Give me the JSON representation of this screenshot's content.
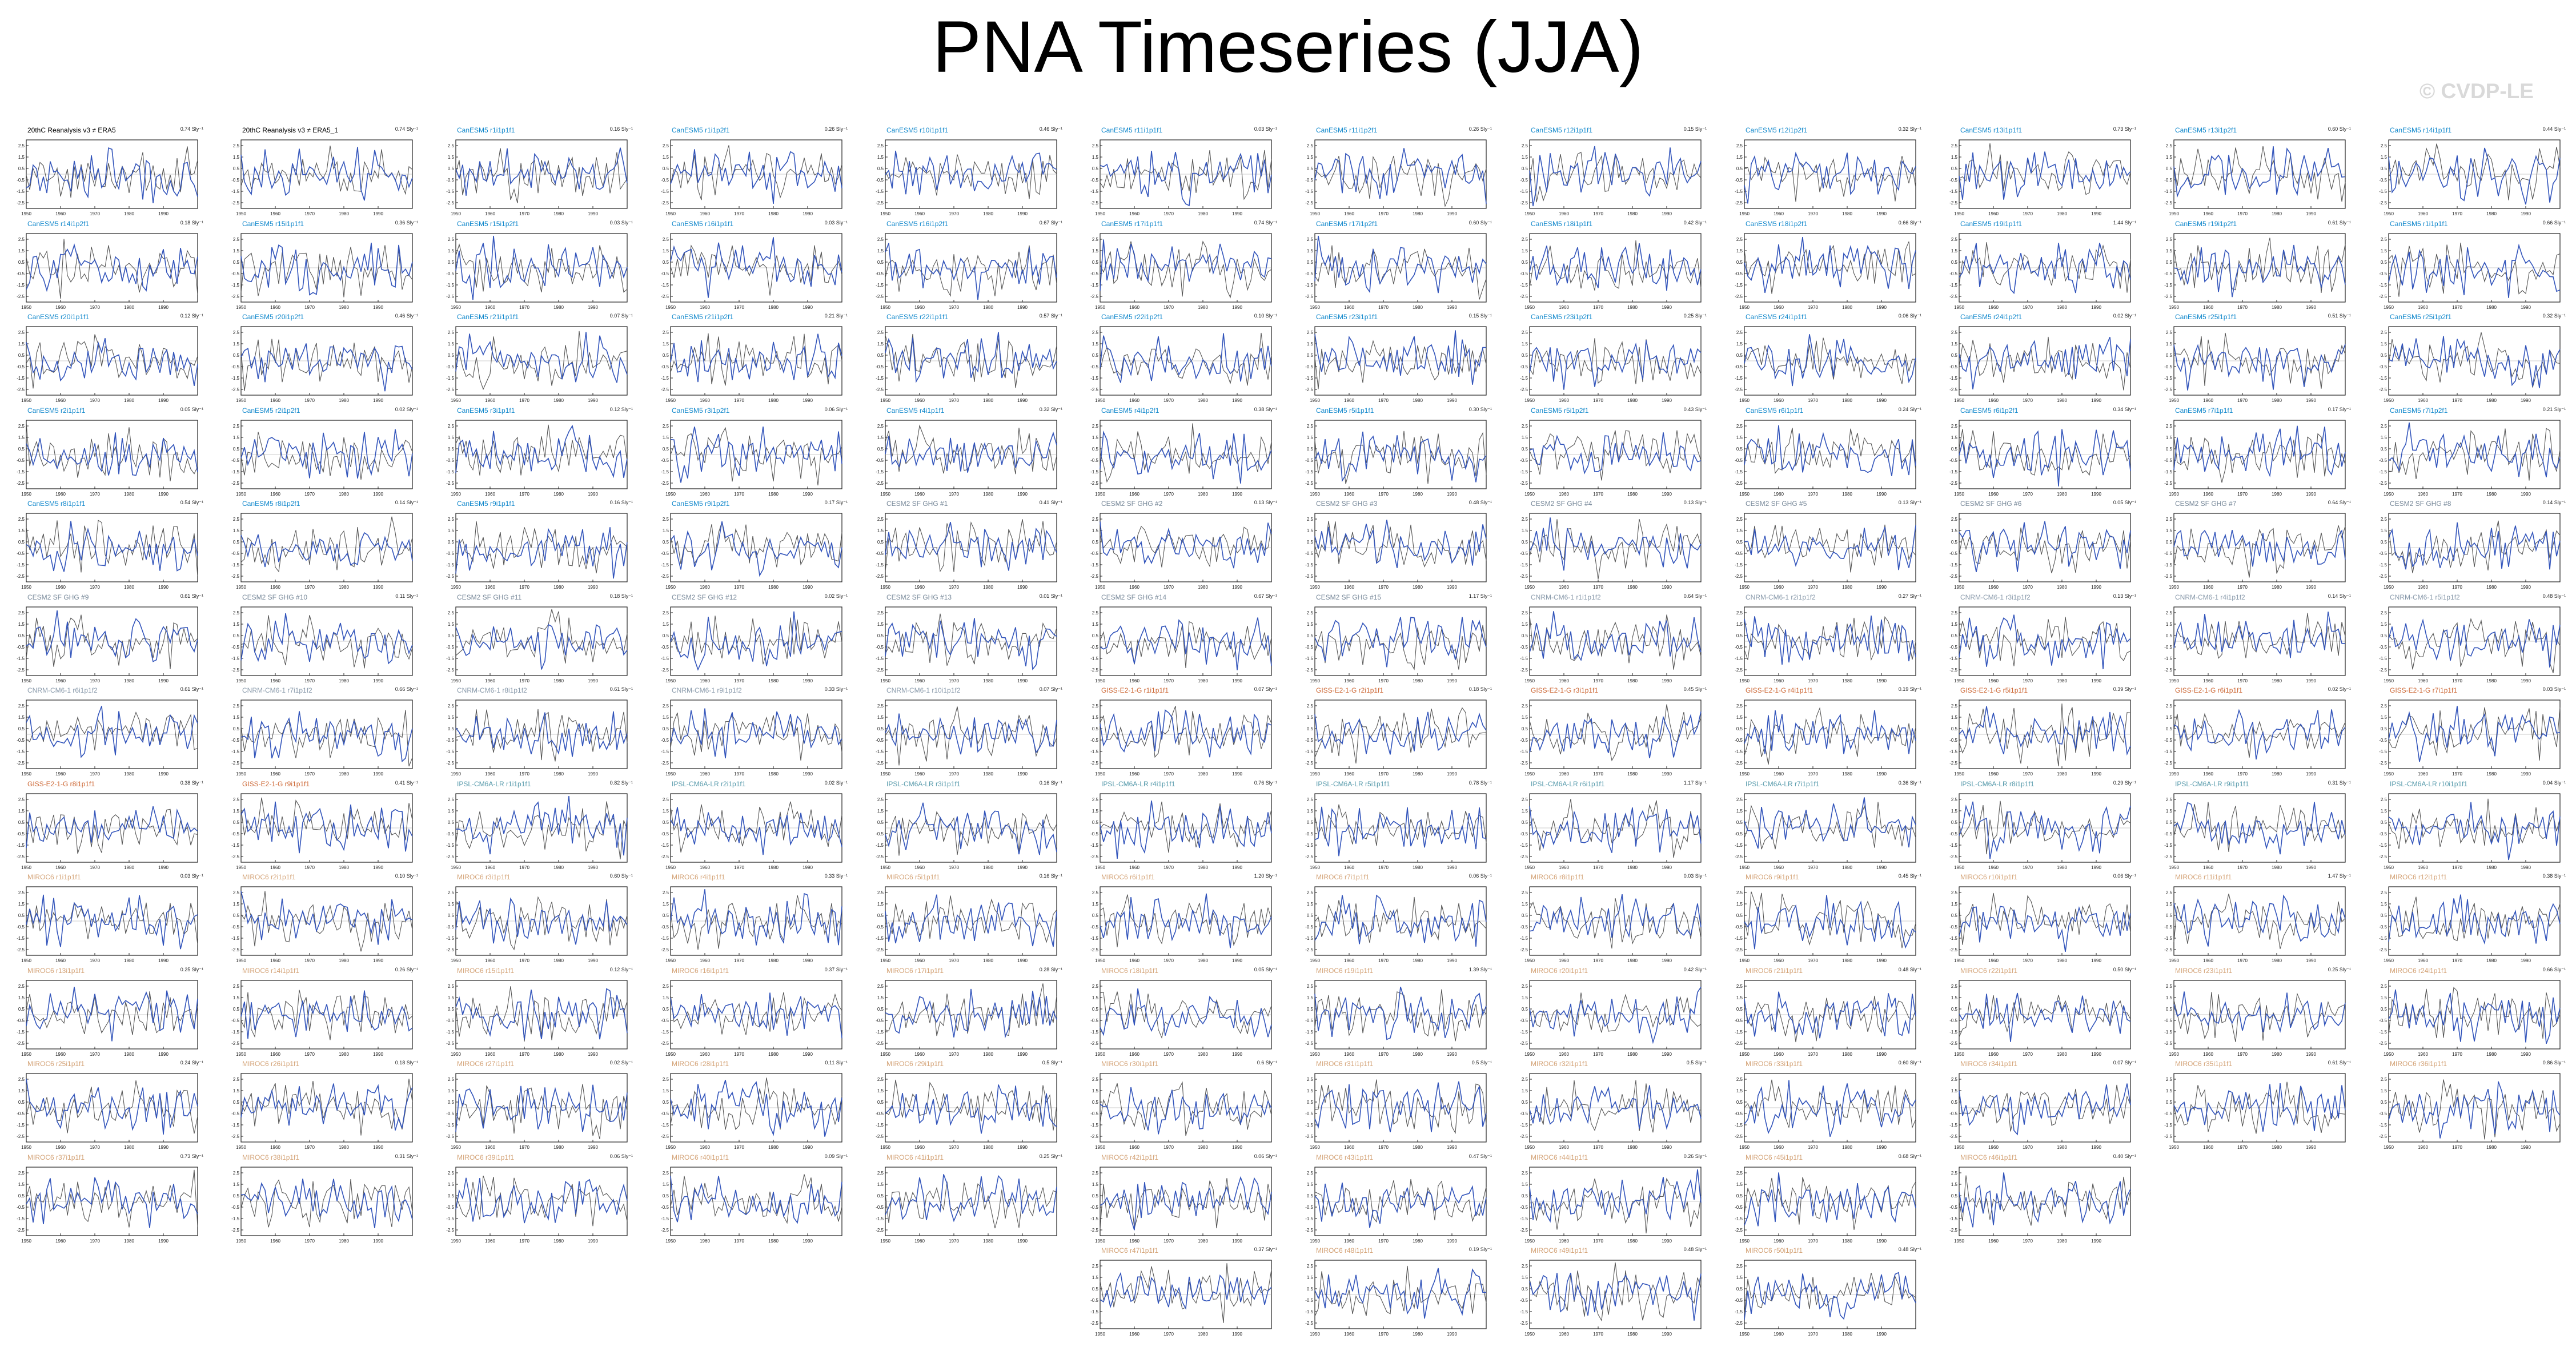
{
  "title": "PNA Timeseries (JJA)",
  "watermark": "© CVDP-LE",
  "chart_data": {
    "type": "line",
    "title": "PNA Timeseries (JJA)",
    "x_range": [
      1950,
      2000
    ],
    "x_ticks": [
      1950,
      1960,
      1970,
      1980,
      1990
    ],
    "y_ticks": [
      2.5,
      1.5,
      0.5,
      -0.5,
      -1.5,
      -2.5
    ],
    "ylim": [
      -3,
      3
    ],
    "series_colors": {
      "model": "#3355bb",
      "observed": "#555555"
    },
    "title_colors": {
      "obs": "#000000",
      "cesm1": "#1188cc",
      "cesm2": "#778899",
      "cnrm": "#8899aa",
      "giss": "#cc6633",
      "ipsl": "#5599aa",
      "miroc": "#d4a377"
    },
    "panels": [
      {
        "label": "20thC Reanalysis v3 ≠ ERA5",
        "trend": "0.74 Sly⁻¹",
        "group": "obs"
      },
      {
        "label": "20thC Reanalysis v3 ≠ ERA5_1",
        "trend": "0.74 Sly⁻¹",
        "group": "obs"
      },
      {
        "label": "CanESM5 r1i1p1f1",
        "trend": "0.16 Sly⁻¹",
        "group": "cesm1"
      },
      {
        "label": "CanESM5 r1i1p2f1",
        "trend": "0.26 Sly⁻¹",
        "group": "cesm1"
      },
      {
        "label": "CanESM5 r10i1p1f1",
        "trend": "0.46 Sly⁻¹",
        "group": "cesm1"
      },
      {
        "label": "CanESM5 r11i1p1f1",
        "trend": "0.03 Sly⁻¹",
        "group": "cesm1"
      },
      {
        "label": "CanESM5 r11i1p2f1",
        "trend": "0.26 Sly⁻¹",
        "group": "cesm1"
      },
      {
        "label": "CanESM5 r12i1p1f1",
        "trend": "0.15 Sly⁻¹",
        "group": "cesm1"
      },
      {
        "label": "CanESM5 r12i1p2f1",
        "trend": "0.32 Sly⁻¹",
        "group": "cesm1"
      },
      {
        "label": "CanESM5 r13i1p1f1",
        "trend": "0.73 Sly⁻¹",
        "group": "cesm1"
      },
      {
        "label": "CanESM5 r13i1p2f1",
        "trend": "0.60 Sly⁻¹",
        "group": "cesm1"
      },
      {
        "label": "CanESM5 r14i1p1f1",
        "trend": "0.44 Sly⁻¹",
        "group": "cesm1"
      },
      {
        "label": "CanESM5 r14i1p2f1",
        "trend": "0.18 Sly⁻¹",
        "group": "cesm1"
      },
      {
        "label": "CanESM5 r15i1p1f1",
        "trend": "0.36 Sly⁻¹",
        "group": "cesm1"
      },
      {
        "label": "CanESM5 r15i1p2f1",
        "trend": "0.03 Sly⁻¹",
        "group": "cesm1"
      },
      {
        "label": "CanESM5 r16i1p1f1",
        "trend": "0.03 Sly⁻¹",
        "group": "cesm1"
      },
      {
        "label": "CanESM5 r16i1p2f1",
        "trend": "0.67 Sly⁻¹",
        "group": "cesm1"
      },
      {
        "label": "CanESM5 r17i1p1f1",
        "trend": "0.74 Sly⁻¹",
        "group": "cesm1"
      },
      {
        "label": "CanESM5 r17i1p2f1",
        "trend": "0.60 Sly⁻¹",
        "group": "cesm1"
      },
      {
        "label": "CanESM5 r18i1p1f1",
        "trend": "0.42 Sly⁻¹",
        "group": "cesm1"
      },
      {
        "label": "CanESM5 r18i1p2f1",
        "trend": "0.66 Sly⁻¹",
        "group": "cesm1"
      },
      {
        "label": "CanESM5 r19i1p1f1",
        "trend": "1.44 Sly⁻¹",
        "group": "cesm1"
      },
      {
        "label": "CanESM5 r19i1p2f1",
        "trend": "0.61 Sly⁻¹",
        "group": "cesm1"
      },
      {
        "label": "CanESM5 r1i1p1f1",
        "trend": "0.66 Sly⁻¹",
        "group": "cesm1"
      },
      {
        "label": "CanESM5 r20i1p1f1",
        "trend": "0.12 Sly⁻¹",
        "group": "cesm1"
      },
      {
        "label": "CanESM5 r20i1p2f1",
        "trend": "0.46 Sly⁻¹",
        "group": "cesm1"
      },
      {
        "label": "CanESM5 r21i1p1f1",
        "trend": "0.07 Sly⁻¹",
        "group": "cesm1"
      },
      {
        "label": "CanESM5 r21i1p2f1",
        "trend": "0.21 Sly⁻¹",
        "group": "cesm1"
      },
      {
        "label": "CanESM5 r22i1p1f1",
        "trend": "0.57 Sly⁻¹",
        "group": "cesm1"
      },
      {
        "label": "CanESM5 r22i1p2f1",
        "trend": "0.10 Sly⁻¹",
        "group": "cesm1"
      },
      {
        "label": "CanESM5 r23i1p1f1",
        "trend": "0.15 Sly⁻¹",
        "group": "cesm1"
      },
      {
        "label": "CanESM5 r23i1p2f1",
        "trend": "0.25 Sly⁻¹",
        "group": "cesm1"
      },
      {
        "label": "CanESM5 r24i1p1f1",
        "trend": "0.06 Sly⁻¹",
        "group": "cesm1"
      },
      {
        "label": "CanESM5 r24i1p2f1",
        "trend": "0.02 Sly⁻¹",
        "group": "cesm1"
      },
      {
        "label": "CanESM5 r25i1p1f1",
        "trend": "0.51 Sly⁻¹",
        "group": "cesm1"
      },
      {
        "label": "CanESM5 r25i1p2f1",
        "trend": "0.32 Sly⁻¹",
        "group": "cesm1"
      },
      {
        "label": "CanESM5 r2i1p1f1",
        "trend": "0.05 Sly⁻¹",
        "group": "cesm1"
      },
      {
        "label": "CanESM5 r2i1p2f1",
        "trend": "0.02 Sly⁻¹",
        "group": "cesm1"
      },
      {
        "label": "CanESM5 r3i1p1f1",
        "trend": "0.12 Sly⁻¹",
        "group": "cesm1"
      },
      {
        "label": "CanESM5 r3i1p2f1",
        "trend": "0.06 Sly⁻¹",
        "group": "cesm1"
      },
      {
        "label": "CanESM5 r4i1p1f1",
        "trend": "0.32 Sly⁻¹",
        "group": "cesm1"
      },
      {
        "label": "CanESM5 r4i1p2f1",
        "trend": "0.38 Sly⁻¹",
        "group": "cesm1"
      },
      {
        "label": "CanESM5 r5i1p1f1",
        "trend": "0.30 Sly⁻¹",
        "group": "cesm1"
      },
      {
        "label": "CanESM5 r5i1p2f1",
        "trend": "0.43 Sly⁻¹",
        "group": "cesm1"
      },
      {
        "label": "CanESM5 r6i1p1f1",
        "trend": "0.24 Sly⁻¹",
        "group": "cesm1"
      },
      {
        "label": "CanESM5 r6i1p2f1",
        "trend": "0.34 Sly⁻¹",
        "group": "cesm1"
      },
      {
        "label": "CanESM5 r7i1p1f1",
        "trend": "0.17 Sly⁻¹",
        "group": "cesm1"
      },
      {
        "label": "CanESM5 r7i1p2f1",
        "trend": "0.21 Sly⁻¹",
        "group": "cesm1"
      },
      {
        "label": "CanESM5 r8i1p1f1",
        "trend": "0.54 Sly⁻¹",
        "group": "cesm1"
      },
      {
        "label": "CanESM5 r8i1p2f1",
        "trend": "0.14 Sly⁻¹",
        "group": "cesm1"
      },
      {
        "label": "CanESM5 r9i1p1f1",
        "trend": "0.16 Sly⁻¹",
        "group": "cesm1"
      },
      {
        "label": "CanESM5 r9i1p2f1",
        "trend": "0.17 Sly⁻¹",
        "group": "cesm1"
      },
      {
        "label": "CESM2 SF GHG #1",
        "trend": "0.41 Sly⁻¹",
        "group": "cesm2"
      },
      {
        "label": "CESM2 SF GHG #2",
        "trend": "0.13 Sly⁻¹",
        "group": "cesm2"
      },
      {
        "label": "CESM2 SF GHG #3",
        "trend": "0.48 Sly⁻¹",
        "group": "cesm2"
      },
      {
        "label": "CESM2 SF GHG #4",
        "trend": "0.13 Sly⁻¹",
        "group": "cesm2"
      },
      {
        "label": "CESM2 SF GHG #5",
        "trend": "0.13 Sly⁻¹",
        "group": "cesm2"
      },
      {
        "label": "CESM2 SF GHG #6",
        "trend": "0.05 Sly⁻¹",
        "group": "cesm2"
      },
      {
        "label": "CESM2 SF GHG #7",
        "trend": "0.64 Sly⁻¹",
        "group": "cesm2"
      },
      {
        "label": "CESM2 SF GHG #8",
        "trend": "0.14 Sly⁻¹",
        "group": "cesm2"
      },
      {
        "label": "CESM2 SF GHG #9",
        "trend": "0.61 Sly⁻¹",
        "group": "cesm2"
      },
      {
        "label": "CESM2 SF GHG #10",
        "trend": "0.11 Sly⁻¹",
        "group": "cesm2"
      },
      {
        "label": "CESM2 SF GHG #11",
        "trend": "0.18 Sly⁻¹",
        "group": "cesm2"
      },
      {
        "label": "CESM2 SF GHG #12",
        "trend": "0.02 Sly⁻¹",
        "group": "cesm2"
      },
      {
        "label": "CESM2 SF GHG #13",
        "trend": "0.01 Sly⁻¹",
        "group": "cesm2"
      },
      {
        "label": "CESM2 SF GHG #14",
        "trend": "0.67 Sly⁻¹",
        "group": "cesm2"
      },
      {
        "label": "CESM2 SF GHG #15",
        "trend": "1.17 Sly⁻¹",
        "group": "cesm2"
      },
      {
        "label": "CNRM-CM6-1 r1i1p1f2",
        "trend": "0.64 Sly⁻¹",
        "group": "cnrm"
      },
      {
        "label": "CNRM-CM6-1 r2i1p1f2",
        "trend": "0.27 Sly⁻¹",
        "group": "cnrm"
      },
      {
        "label": "CNRM-CM6-1 r3i1p1f2",
        "trend": "0.13 Sly⁻¹",
        "group": "cnrm"
      },
      {
        "label": "CNRM-CM6-1 r4i1p1f2",
        "trend": "0.14 Sly⁻¹",
        "group": "cnrm"
      },
      {
        "label": "CNRM-CM6-1 r5i1p1f2",
        "trend": "0.48 Sly⁻¹",
        "group": "cnrm"
      },
      {
        "label": "CNRM-CM6-1 r6i1p1f2",
        "trend": "0.61 Sly⁻¹",
        "group": "cnrm"
      },
      {
        "label": "CNRM-CM6-1 r7i1p1f2",
        "trend": "0.66 Sly⁻¹",
        "group": "cnrm"
      },
      {
        "label": "CNRM-CM6-1 r8i1p1f2",
        "trend": "0.61 Sly⁻¹",
        "group": "cnrm"
      },
      {
        "label": "CNRM-CM6-1 r9i1p1f2",
        "trend": "0.33 Sly⁻¹",
        "group": "cnrm"
      },
      {
        "label": "CNRM-CM6-1 r10i1p1f2",
        "trend": "0.07 Sly⁻¹",
        "group": "cnrm"
      },
      {
        "label": "GISS-E2-1-G r1i1p1f1",
        "trend": "0.07 Sly⁻¹",
        "group": "giss"
      },
      {
        "label": "GISS-E2-1-G r2i1p1f1",
        "trend": "0.18 Sly⁻¹",
        "group": "giss"
      },
      {
        "label": "GISS-E2-1-G r3i1p1f1",
        "trend": "0.45 Sly⁻¹",
        "group": "giss"
      },
      {
        "label": "GISS-E2-1-G r4i1p1f1",
        "trend": "0.19 Sly⁻¹",
        "group": "giss"
      },
      {
        "label": "GISS-E2-1-G r5i1p1f1",
        "trend": "0.39 Sly⁻¹",
        "group": "giss"
      },
      {
        "label": "GISS-E2-1-G r6i1p1f1",
        "trend": "0.02 Sly⁻¹",
        "group": "giss"
      },
      {
        "label": "GISS-E2-1-G r7i1p1f1",
        "trend": "0.03 Sly⁻¹",
        "group": "giss"
      },
      {
        "label": "GISS-E2-1-G r8i1p1f1",
        "trend": "0.38 Sly⁻¹",
        "group": "giss"
      },
      {
        "label": "GISS-E2-1-G r9i1p1f1",
        "trend": "0.41 Sly⁻¹",
        "group": "giss"
      },
      {
        "label": "IPSL-CM6A-LR r1i1p1f1",
        "trend": "0.82 Sly⁻¹",
        "group": "ipsl"
      },
      {
        "label": "IPSL-CM6A-LR r2i1p1f1",
        "trend": "0.02 Sly⁻¹",
        "group": "ipsl"
      },
      {
        "label": "IPSL-CM6A-LR r3i1p1f1",
        "trend": "0.16 Sly⁻¹",
        "group": "ipsl"
      },
      {
        "label": "IPSL-CM6A-LR r4i1p1f1",
        "trend": "0.76 Sly⁻¹",
        "group": "ipsl"
      },
      {
        "label": "IPSL-CM6A-LR r5i1p1f1",
        "trend": "0.78 Sly⁻¹",
        "group": "ipsl"
      },
      {
        "label": "IPSL-CM6A-LR r6i1p1f1",
        "trend": "1.17 Sly⁻¹",
        "group": "ipsl"
      },
      {
        "label": "IPSL-CM6A-LR r7i1p1f1",
        "trend": "0.36 Sly⁻¹",
        "group": "ipsl"
      },
      {
        "label": "IPSL-CM6A-LR r8i1p1f1",
        "trend": "0.29 Sly⁻¹",
        "group": "ipsl"
      },
      {
        "label": "IPSL-CM6A-LR r9i1p1f1",
        "trend": "0.31 Sly⁻¹",
        "group": "ipsl"
      },
      {
        "label": "IPSL-CM6A-LR r10i1p1f1",
        "trend": "0.04 Sly⁻¹",
        "group": "ipsl"
      },
      {
        "label": "MIROC6 r1i1p1f1",
        "trend": "0.03 Sly⁻¹",
        "group": "miroc"
      },
      {
        "label": "MIROC6 r2i1p1f1",
        "trend": "0.10 Sly⁻¹",
        "group": "miroc"
      },
      {
        "label": "MIROC6 r3i1p1f1",
        "trend": "0.60 Sly⁻¹",
        "group": "miroc"
      },
      {
        "label": "MIROC6 r4i1p1f1",
        "trend": "0.33 Sly⁻¹",
        "group": "miroc"
      },
      {
        "label": "MIROC6 r5i1p1f1",
        "trend": "0.16 Sly⁻¹",
        "group": "miroc"
      },
      {
        "label": "MIROC6 r6i1p1f1",
        "trend": "1.20 Sly⁻¹",
        "group": "miroc"
      },
      {
        "label": "MIROC6 r7i1p1f1",
        "trend": "0.06 Sly⁻¹",
        "group": "miroc"
      },
      {
        "label": "MIROC6 r8i1p1f1",
        "trend": "0.03 Sly⁻¹",
        "group": "miroc"
      },
      {
        "label": "MIROC6 r9i1p1f1",
        "trend": "0.45 Sly⁻¹",
        "group": "miroc"
      },
      {
        "label": "MIROC6 r10i1p1f1",
        "trend": "0.06 Sly⁻¹",
        "group": "miroc"
      },
      {
        "label": "MIROC6 r11i1p1f1",
        "trend": "1.47 Sly⁻¹",
        "group": "miroc"
      },
      {
        "label": "MIROC6 r12i1p1f1",
        "trend": "0.38 Sly⁻¹",
        "group": "miroc"
      },
      {
        "label": "MIROC6 r13i1p1f1",
        "trend": "0.25 Sly⁻¹",
        "group": "miroc"
      },
      {
        "label": "MIROC6 r14i1p1f1",
        "trend": "0.26 Sly⁻¹",
        "group": "miroc"
      },
      {
        "label": "MIROC6 r15i1p1f1",
        "trend": "0.12 Sly⁻¹",
        "group": "miroc"
      },
      {
        "label": "MIROC6 r16i1p1f1",
        "trend": "0.37 Sly⁻¹",
        "group": "miroc"
      },
      {
        "label": "MIROC6 r17i1p1f1",
        "trend": "0.28 Sly⁻¹",
        "group": "miroc"
      },
      {
        "label": "MIROC6 r18i1p1f1",
        "trend": "0.05 Sly⁻¹",
        "group": "miroc"
      },
      {
        "label": "MIROC6 r19i1p1f1",
        "trend": "1.39 Sly⁻¹",
        "group": "miroc"
      },
      {
        "label": "MIROC6 r20i1p1f1",
        "trend": "0.42 Sly⁻¹",
        "group": "miroc"
      },
      {
        "label": "MIROC6 r21i1p1f1",
        "trend": "0.48 Sly⁻¹",
        "group": "miroc"
      },
      {
        "label": "MIROC6 r22i1p1f1",
        "trend": "0.50 Sly⁻¹",
        "group": "miroc"
      },
      {
        "label": "MIROC6 r23i1p1f1",
        "trend": "0.25 Sly⁻¹",
        "group": "miroc"
      },
      {
        "label": "MIROC6 r24i1p1f1",
        "trend": "0.66 Sly⁻¹",
        "group": "miroc"
      },
      {
        "label": "MIROC6 r25i1p1f1",
        "trend": "0.24 Sly⁻¹",
        "group": "miroc"
      },
      {
        "label": "MIROC6 r26i1p1f1",
        "trend": "0.18 Sly⁻¹",
        "group": "miroc"
      },
      {
        "label": "MIROC6 r27i1p1f1",
        "trend": "0.02 Sly⁻¹",
        "group": "miroc"
      },
      {
        "label": "MIROC6 r28i1p1f1",
        "trend": "0.11 Sly⁻¹",
        "group": "miroc"
      },
      {
        "label": "MIROC6 r29i1p1f1",
        "trend": "0.5 Sly⁻¹",
        "group": "miroc"
      },
      {
        "label": "MIROC6 r30i1p1f1",
        "trend": "0.6 Sly⁻¹",
        "group": "miroc"
      },
      {
        "label": "MIROC6 r31i1p1f1",
        "trend": "0.5 Sly⁻¹",
        "group": "miroc"
      },
      {
        "label": "MIROC6 r32i1p1f1",
        "trend": "0.5 Sly⁻¹",
        "group": "miroc"
      },
      {
        "label": "MIROC6 r33i1p1f1",
        "trend": "0.60 Sly⁻¹",
        "group": "miroc"
      },
      {
        "label": "MIROC6 r34i1p1f1",
        "trend": "0.07 Sly⁻¹",
        "group": "miroc"
      },
      {
        "label": "MIROC6 r35i1p1f1",
        "trend": "0.61 Sly⁻¹",
        "group": "miroc"
      },
      {
        "label": "MIROC6 r36i1p1f1",
        "trend": "0.86 Sly⁻¹",
        "group": "miroc"
      },
      {
        "label": "MIROC6 r37i1p1f1",
        "trend": "0.73 Sly⁻¹",
        "group": "miroc"
      },
      {
        "label": "MIROC6 r38i1p1f1",
        "trend": "0.31 Sly⁻¹",
        "group": "miroc"
      },
      {
        "label": "MIROC6 r39i1p1f1",
        "trend": "0.06 Sly⁻¹",
        "group": "miroc"
      },
      {
        "label": "MIROC6 r40i1p1f1",
        "trend": "0.09 Sly⁻¹",
        "group": "miroc"
      },
      {
        "label": "MIROC6 r41i1p1f1",
        "trend": "0.25 Sly⁻¹",
        "group": "miroc"
      },
      {
        "label": "MIROC6 r42i1p1f1",
        "trend": "0.06 Sly⁻¹",
        "group": "miroc"
      },
      {
        "label": "MIROC6 r43i1p1f1",
        "trend": "0.47 Sly⁻¹",
        "group": "miroc"
      },
      {
        "label": "MIROC6 r44i1p1f1",
        "trend": "0.26 Sly⁻¹",
        "group": "miroc"
      },
      {
        "label": "MIROC6 r45i1p1f1",
        "trend": "0.68 Sly⁻¹",
        "group": "miroc"
      },
      {
        "label": "MIROC6 r46i1p1f1",
        "trend": "0.40 Sly⁻¹",
        "group": "miroc"
      },
      {
        "label": "MIROC6 r47i1p1f1",
        "trend": "0.37 Sly⁻¹",
        "group": "miroc"
      },
      {
        "label": "MIROC6 r48i1p1f1",
        "trend": "0.19 Sly⁻¹",
        "group": "miroc"
      },
      {
        "label": "MIROC6 r49i1p1f1",
        "trend": "0.48 Sly⁻¹",
        "group": "miroc"
      },
      {
        "label": "MIROC6 r50i1p1f1",
        "trend": "0.48 Sly⁻¹",
        "group": "miroc"
      }
    ]
  }
}
